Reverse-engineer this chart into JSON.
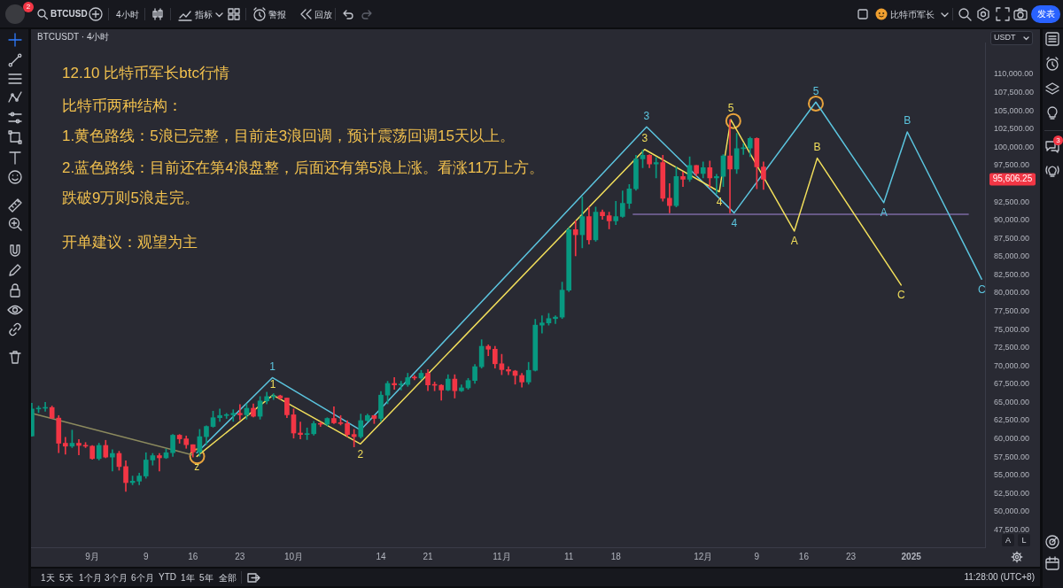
{
  "chart_data": {
    "type": "candlestick",
    "title": "12.10 比特币军长btc行情",
    "subtitle": "BTCUSDT · 4小时",
    "x": [
      "2024-08-23",
      "2024-08-24",
      "2024-08-25",
      "2024-08-26",
      "2024-08-27",
      "2024-08-28",
      "2024-08-29",
      "2024-08-30",
      "2024-08-31",
      "2024-09-01",
      "2024-09-02",
      "2024-09-03",
      "2024-09-04",
      "2024-09-05",
      "2024-09-06",
      "2024-09-07",
      "2024-09-08",
      "2024-09-09",
      "2024-09-10",
      "2024-09-11",
      "2024-09-12",
      "2024-09-13",
      "2024-09-14",
      "2024-09-15",
      "2024-09-16",
      "2024-09-17",
      "2024-09-18",
      "2024-09-19",
      "2024-09-20",
      "2024-09-21",
      "2024-09-22",
      "2024-09-23",
      "2024-09-24",
      "2024-09-25",
      "2024-09-26",
      "2024-09-27",
      "2024-09-28",
      "2024-09-29",
      "2024-09-30",
      "2024-10-01",
      "2024-10-02",
      "2024-10-03",
      "2024-10-04",
      "2024-10-05",
      "2024-10-06",
      "2024-10-07",
      "2024-10-08",
      "2024-10-09",
      "2024-10-10",
      "2024-10-11",
      "2024-10-12",
      "2024-10-13",
      "2024-10-14",
      "2024-10-15",
      "2024-10-16",
      "2024-10-17",
      "2024-10-18",
      "2024-10-19",
      "2024-10-20",
      "2024-10-21",
      "2024-10-22",
      "2024-10-23",
      "2024-10-24",
      "2024-10-25",
      "2024-10-26",
      "2024-10-27",
      "2024-10-28",
      "2024-10-29",
      "2024-10-30",
      "2024-10-31",
      "2024-11-01",
      "2024-11-02",
      "2024-11-03",
      "2024-11-04",
      "2024-11-05",
      "2024-11-06",
      "2024-11-07",
      "2024-11-08",
      "2024-11-09",
      "2024-11-10",
      "2024-11-11",
      "2024-11-12",
      "2024-11-13",
      "2024-11-14",
      "2024-11-15",
      "2024-11-16",
      "2024-11-17",
      "2024-11-18",
      "2024-11-19",
      "2024-11-20",
      "2024-11-21",
      "2024-11-22",
      "2024-11-23",
      "2024-11-24",
      "2024-11-25",
      "2024-11-26",
      "2024-11-27",
      "2024-11-28",
      "2024-11-29",
      "2024-11-30",
      "2024-12-01",
      "2024-12-02",
      "2024-12-03",
      "2024-12-04",
      "2024-12-05",
      "2024-12-06",
      "2024-12-07",
      "2024-12-08",
      "2024-12-09",
      "2024-12-10"
    ],
    "ohlc": [
      [
        60400,
        64900,
        60350,
        64100
      ],
      [
        64100,
        64500,
        63600,
        64200
      ],
      [
        64200,
        65000,
        63800,
        64300
      ],
      [
        64300,
        64500,
        62800,
        62850
      ],
      [
        62850,
        63200,
        58100,
        59400
      ],
      [
        59400,
        60200,
        57900,
        59000
      ],
      [
        59000,
        61200,
        58800,
        59400
      ],
      [
        59400,
        59900,
        57800,
        59100
      ],
      [
        59100,
        59500,
        58800,
        59000
      ],
      [
        59000,
        59100,
        57200,
        57300
      ],
      [
        57300,
        59400,
        57100,
        59100
      ],
      [
        59100,
        59800,
        57400,
        57500
      ],
      [
        57500,
        58500,
        55600,
        58000
      ],
      [
        58000,
        58300,
        55700,
        56200
      ],
      [
        56200,
        57000,
        52800,
        54000
      ],
      [
        54000,
        54900,
        53700,
        54200
      ],
      [
        54200,
        55300,
        53700,
        54900
      ],
      [
        54900,
        58100,
        54600,
        57100
      ],
      [
        57100,
        58000,
        56400,
        57700
      ],
      [
        57700,
        58000,
        55600,
        57400
      ],
      [
        57400,
        58600,
        57300,
        58100
      ],
      [
        58100,
        60600,
        57600,
        60500
      ],
      [
        60500,
        60600,
        59400,
        60000
      ],
      [
        60000,
        60400,
        58700,
        59200
      ],
      [
        59200,
        59200,
        57500,
        58200
      ],
      [
        58200,
        61300,
        57600,
        60300
      ],
      [
        60300,
        61800,
        59200,
        61700
      ],
      [
        61700,
        63800,
        61600,
        62900
      ],
      [
        62900,
        64100,
        62400,
        63200
      ],
      [
        63200,
        63500,
        62800,
        63300
      ],
      [
        63300,
        64000,
        62400,
        63500
      ],
      [
        63500,
        64700,
        62600,
        63300
      ],
      [
        63300,
        64800,
        62700,
        64200
      ],
      [
        64200,
        64800,
        63000,
        63100
      ],
      [
        63100,
        65800,
        62700,
        65200
      ],
      [
        65200,
        66400,
        64800,
        65800
      ],
      [
        65800,
        66200,
        65400,
        65900
      ],
      [
        65900,
        66000,
        65400,
        65600
      ],
      [
        65600,
        65600,
        62900,
        63300
      ],
      [
        63300,
        64100,
        60100,
        60800
      ],
      [
        60800,
        62300,
        60000,
        60600
      ],
      [
        60600,
        61500,
        59900,
        60700
      ],
      [
        60700,
        62400,
        60500,
        62100
      ],
      [
        62100,
        62300,
        61700,
        62000
      ],
      [
        62000,
        62900,
        61800,
        62800
      ],
      [
        62800,
        64400,
        62100,
        62200
      ],
      [
        62200,
        63200,
        61900,
        62100
      ],
      [
        62100,
        62500,
        60300,
        60600
      ],
      [
        60600,
        61300,
        58900,
        60300
      ],
      [
        60300,
        63400,
        60100,
        62500
      ],
      [
        62500,
        63400,
        62400,
        63200
      ],
      [
        63200,
        63200,
        62100,
        62800
      ],
      [
        62800,
        66500,
        62400,
        66000
      ],
      [
        66000,
        67900,
        64800,
        67600
      ],
      [
        67600,
        68400,
        66800,
        67400
      ],
      [
        67400,
        67900,
        66700,
        67450
      ],
      [
        67450,
        69000,
        67200,
        68400
      ],
      [
        68400,
        68700,
        68100,
        68350
      ],
      [
        68350,
        69400,
        68100,
        69000
      ],
      [
        69000,
        69500,
        66600,
        67400
      ],
      [
        67400,
        67800,
        66600,
        67350
      ],
      [
        67350,
        67450,
        65300,
        66700
      ],
      [
        66700,
        68800,
        66600,
        68200
      ],
      [
        68200,
        68800,
        65600,
        66600
      ],
      [
        66600,
        67400,
        66500,
        67000
      ],
      [
        67000,
        68300,
        66800,
        68000
      ],
      [
        68000,
        70200,
        67600,
        69900
      ],
      [
        69900,
        73600,
        69700,
        72700
      ],
      [
        72700,
        72900,
        71400,
        72300
      ],
      [
        72300,
        72700,
        69700,
        70300
      ],
      [
        70300,
        71600,
        68800,
        69500
      ],
      [
        69500,
        69900,
        68800,
        69300
      ],
      [
        69300,
        69400,
        67500,
        68700
      ],
      [
        68700,
        69000,
        67100,
        67800
      ],
      [
        67800,
        70500,
        67500,
        69400
      ],
      [
        69400,
        76400,
        69300,
        75600
      ],
      [
        75600,
        76900,
        74500,
        75900
      ],
      [
        75900,
        77200,
        75600,
        76500
      ],
      [
        76500,
        76900,
        75800,
        76700
      ],
      [
        76700,
        81500,
        76500,
        80400
      ],
      [
        80400,
        89000,
        80200,
        88700
      ],
      [
        88700,
        89900,
        85100,
        88000
      ],
      [
        88000,
        93200,
        86200,
        90500
      ],
      [
        90500,
        91800,
        86700,
        87300
      ],
      [
        87300,
        91800,
        87100,
        91100
      ],
      [
        91100,
        91400,
        90100,
        90600
      ],
      [
        90600,
        91100,
        88800,
        89900
      ],
      [
        89900,
        92600,
        89400,
        90500
      ],
      [
        90500,
        94000,
        90400,
        92300
      ],
      [
        92300,
        94900,
        91600,
        94300
      ],
      [
        94300,
        98900,
        94100,
        98400
      ],
      [
        98400,
        99600,
        97200,
        98900
      ],
      [
        98900,
        99000,
        97200,
        97700
      ],
      [
        97700,
        98600,
        95800,
        97900
      ],
      [
        97900,
        98900,
        92600,
        93000
      ],
      [
        93000,
        95000,
        91000,
        92000
      ],
      [
        92000,
        97300,
        91800,
        96000
      ],
      [
        96000,
        96600,
        94600,
        95600
      ],
      [
        95600,
        98700,
        95300,
        97500
      ],
      [
        97500,
        97500,
        96100,
        96400
      ],
      [
        96400,
        98000,
        95800,
        97200
      ],
      [
        97200,
        98100,
        94500,
        95800
      ],
      [
        95800,
        96300,
        93600,
        96000
      ],
      [
        96000,
        99000,
        94600,
        98800
      ],
      [
        98800,
        103800,
        91000,
        97000
      ],
      [
        97000,
        101900,
        96400,
        99800
      ],
      [
        99800,
        100500,
        99000,
        99900
      ],
      [
        99900,
        101400,
        98700,
        101200
      ],
      [
        101200,
        101300,
        94300,
        97300
      ],
      [
        97300,
        98000,
        94200,
        95606.25
      ]
    ],
    "colors": [
      "#089981",
      "#089981",
      "#089981",
      "#f23645",
      "#f23645",
      "#f23645",
      "#089981",
      "#f23645",
      "#f23645",
      "#f23645",
      "#089981",
      "#f23645",
      "#089981",
      "#f23645",
      "#f23645",
      "#089981",
      "#089981",
      "#089981",
      "#089981",
      "#f23645",
      "#089981",
      "#089981",
      "#f23645",
      "#f23645",
      "#f23645",
      "#089981",
      "#089981",
      "#089981",
      "#089981",
      "#089981",
      "#089981",
      "#f23645",
      "#089981",
      "#f23645",
      "#089981",
      "#089981",
      "#089981",
      "#f23645",
      "#f23645",
      "#f23645",
      "#f23645",
      "#089981",
      "#089981",
      "#f23645",
      "#089981",
      "#f23645",
      "#f23645",
      "#f23645",
      "#f23645",
      "#089981",
      "#089981",
      "#f23645",
      "#089981",
      "#089981",
      "#f23645",
      "#089981",
      "#089981",
      "#f23645",
      "#089981",
      "#f23645",
      "#f23645",
      "#f23645",
      "#089981",
      "#f23645",
      "#089981",
      "#089981",
      "#089981",
      "#089981",
      "#f23645",
      "#f23645",
      "#f23645",
      "#f23645",
      "#f23645",
      "#f23645",
      "#089981",
      "#089981",
      "#089981",
      "#089981",
      "#089981",
      "#089981",
      "#089981",
      "#f23645",
      "#089981",
      "#f23645",
      "#089981",
      "#f23645",
      "#f23645",
      "#089981",
      "#089981",
      "#089981",
      "#089981",
      "#089981",
      "#f23645",
      "#089981",
      "#f23645",
      "#f23645",
      "#089981",
      "#f23645",
      "#089981",
      "#f23645",
      "#089981",
      "#f23645",
      "#089981",
      "#089981",
      "#f23645",
      "#089981",
      "#089981",
      "#089981",
      "#f23645",
      "#f23645"
    ],
    "series": [
      {
        "type": "line",
        "color": "#8c8a5e",
        "x": [
          "2024-08-23T00:00",
          "2024-09-15T22:00"
        ],
        "values": [
          63500,
          57800
        ]
      },
      {
        "type": "line",
        "color": "#f2df5b",
        "x": [
          "2024-09-16T14:00",
          "2024-09-27T22:00",
          "2024-10-10T23:00",
          "2024-11-22T07:00",
          "2024-12-03T10:00",
          "2024-12-05T03:00",
          "2024-12-14T14:00",
          "2024-12-18T00:00",
          "2024-12-30T12:00"
        ],
        "values": [
          57600,
          66000,
          59300,
          99700,
          93900,
          103800,
          88500,
          98500,
          81100
        ]
      },
      {
        "type": "line",
        "color": "#5bc4de",
        "x": [
          "2024-09-16T14:00",
          "2024-09-27T20:00",
          "2024-10-10T23:00",
          "2024-11-22T14:00",
          "2024-12-05T15:00",
          "2024-12-17T19:00",
          "2024-12-27T22:00",
          "2024-12-31T10:00",
          "2025-01-11T12:00"
        ],
        "values": [
          58100,
          68400,
          61200,
          102800,
          91000,
          106200,
          92400,
          102100,
          81900
        ]
      },
      {
        "type": "line",
        "color": "#7b6aa3",
        "x": [
          "2024-11-20T14:00",
          "2025-01-09T12:00"
        ],
        "values": [
          90800,
          90800
        ]
      },
      {
        "type": "scatter",
        "color": "#e8a33c",
        "marker": "circle",
        "x": [
          "2024-09-16T15:00",
          "2024-12-05T12:00",
          "2024-12-17T19:00"
        ],
        "values": [
          57600,
          103600,
          106000
        ]
      }
    ],
    "xlim": [
      "2024-08-22T21:00",
      "2025-01-12T00:00"
    ],
    "xticks": [
      {
        "value": "2024-09-01",
        "label": "9月"
      },
      {
        "value": "2024-09-09",
        "label": "9"
      },
      {
        "value": "2024-09-16",
        "label": "16"
      },
      {
        "value": "2024-09-23",
        "label": "23"
      },
      {
        "value": "2024-10-01",
        "label": "10月"
      },
      {
        "value": "2024-10-14",
        "label": "14"
      },
      {
        "value": "2024-10-21",
        "label": "21"
      },
      {
        "value": "2024-11-01",
        "label": "11月"
      },
      {
        "value": "2024-11-11",
        "label": "11"
      },
      {
        "value": "2024-11-18",
        "label": "18"
      },
      {
        "value": "2024-12-01",
        "label": "12月"
      },
      {
        "value": "2024-12-09",
        "label": "9"
      },
      {
        "value": "2024-12-16",
        "label": "16"
      },
      {
        "value": "2024-12-23",
        "label": "23"
      },
      {
        "value": "2025-01-01",
        "label": "2025"
      }
    ],
    "ylim": [
      45130,
      114320
    ],
    "yticks": [
      {
        "value": 47500,
        "label": "47,500.00"
      },
      {
        "value": 50000,
        "label": "50,000.00"
      },
      {
        "value": 52500,
        "label": "52,500.00"
      },
      {
        "value": 55000,
        "label": "55,000.00"
      },
      {
        "value": 57500,
        "label": "57,500.00"
      },
      {
        "value": 60000,
        "label": "60,000.00"
      },
      {
        "value": 62500,
        "label": "62,500.00"
      },
      {
        "value": 65000,
        "label": "65,000.00"
      },
      {
        "value": 67500,
        "label": "67,500.00"
      },
      {
        "value": 70000,
        "label": "70,000.00"
      },
      {
        "value": 72500,
        "label": "72,500.00"
      },
      {
        "value": 75000,
        "label": "75,000.00"
      },
      {
        "value": 77500,
        "label": "77,500.00"
      },
      {
        "value": 80000,
        "label": "80,000.00"
      },
      {
        "value": 82500,
        "label": "82,500.00"
      },
      {
        "value": 85000,
        "label": "85,000.00"
      },
      {
        "value": 87500,
        "label": "87,500.00"
      },
      {
        "value": 90000,
        "label": "90,000.00"
      },
      {
        "value": 92500,
        "label": "92,500.00"
      },
      {
        "value": 97500,
        "label": "97,500.00"
      },
      {
        "value": 100000,
        "label": "100,000.00"
      },
      {
        "value": 102500,
        "label": "102,500.00"
      },
      {
        "value": 105000,
        "label": "105,000.00"
      },
      {
        "value": 107500,
        "label": "107,500.00"
      },
      {
        "value": 110000,
        "label": "110,000.00"
      }
    ],
    "annotations": [
      "比特币两种结构：",
      "1.黄色路线：5浪已完整，目前走3浪回调，预计震荡回调15天以上。",
      "2.蓝色路线：目前还在第4浪盘整，后面还有第5浪上涨。看涨11万上方。",
      "跌破9万则5浪走完。",
      "开单建议：观望为主",
      "95,606.25",
      "2",
      "BTCUSD",
      "4小时",
      "指标",
      "警报",
      "回放",
      "比特币军长",
      "发表",
      "USDT",
      "A",
      "L",
      "3",
      "1天",
      "5天",
      "1个月",
      "3个月",
      "6个月",
      "YTD",
      "1年",
      "5年",
      "全部",
      "11:28:00 (UTC+8)",
      {
        "text": "z",
        "x": "2024-09-16T14:00",
        "y": 57600
      },
      {
        "text": "1",
        "x": "2024-09-27T22:00",
        "y": 66000
      },
      {
        "text": "2",
        "x": "2024-10-10T23:00",
        "y": 59300
      },
      {
        "text": "3",
        "x": "2024-11-22T07:00",
        "y": 99700
      },
      {
        "text": "4",
        "x": "2024-12-03T10:00",
        "y": 93900
      },
      {
        "text": "5",
        "x": "2024-12-05T03:00",
        "y": 103800
      },
      {
        "text": "A",
        "x": "2024-12-14T14:00",
        "y": 88500
      },
      {
        "text": "B",
        "x": "2024-12-18T00:00",
        "y": 98500
      },
      {
        "text": "C",
        "x": "2024-12-30T12:00",
        "y": 81100
      },
      {
        "text": "1",
        "x": "2024-09-27T20:00",
        "y": 68400
      },
      {
        "text": "3",
        "x": "2024-11-22T14:00",
        "y": 102800
      },
      {
        "text": "4",
        "x": "2024-12-05T15:00",
        "y": 91000
      },
      {
        "text": "5",
        "x": "2024-12-17T19:00",
        "y": 106200
      },
      {
        "text": "A",
        "x": "2024-12-27T22:00",
        "y": 92400
      },
      {
        "text": "B",
        "x": "2024-12-31T10:00",
        "y": 102100
      },
      {
        "text": "C",
        "x": "2025-01-11T12:00",
        "y": 81900
      }
    ]
  }
}
